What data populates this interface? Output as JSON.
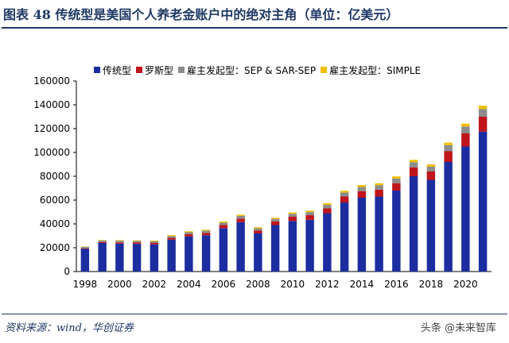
{
  "figure": {
    "title": "图表 48   传统型是美国个人养老金账户中的绝对主角（单位：亿美元）",
    "source": "资料来源：wind，华创证券",
    "watermark": "头条 @未来智库"
  },
  "chart_data": {
    "type": "bar",
    "stacked": true,
    "categories": [
      "1998",
      "1999",
      "2000",
      "2001",
      "2002",
      "2003",
      "2004",
      "2005",
      "2006",
      "2007",
      "2008",
      "2009",
      "2010",
      "2011",
      "2012",
      "2013",
      "2014",
      "2015",
      "2016",
      "2017",
      "2018",
      "2019",
      "2020",
      "2021"
    ],
    "x_tick_labels": [
      "1998",
      "2000",
      "2002",
      "2004",
      "2006",
      "2008",
      "2010",
      "2012",
      "2014",
      "2016",
      "2018",
      "2020"
    ],
    "series": [
      {
        "name": "传统型",
        "color": "#1c2da0",
        "values": [
          19000,
          24000,
          23500,
          23200,
          22800,
          26800,
          29500,
          30500,
          36500,
          41500,
          32000,
          39000,
          42500,
          43500,
          49000,
          58000,
          62000,
          63000,
          68000,
          80000,
          77000,
          92000,
          105000,
          117500
        ]
      },
      {
        "name": "罗斯型",
        "color": "#c0141c",
        "values": [
          500,
          800,
          1000,
          1100,
          1200,
          1500,
          1800,
          2000,
          2500,
          3000,
          2500,
          3000,
          3500,
          3800,
          4200,
          5000,
          5500,
          5800,
          6200,
          7500,
          7000,
          9000,
          11000,
          12500
        ]
      },
      {
        "name": "雇主发起型：SEP & SAR-SEP",
        "color": "#8c8c8c",
        "values": [
          1200,
          1300,
          1400,
          1400,
          1400,
          1500,
          1700,
          1800,
          2000,
          2200,
          1800,
          2200,
          2500,
          2600,
          2900,
          3300,
          3500,
          3600,
          3900,
          4300,
          4100,
          5000,
          5800,
          6500
        ]
      },
      {
        "name": "雇主发起型：SIMPLE",
        "color": "#f0c000",
        "values": [
          300,
          400,
          500,
          500,
          600,
          700,
          800,
          800,
          900,
          1000,
          900,
          1000,
          1100,
          1200,
          1300,
          1500,
          1600,
          1700,
          1800,
          2000,
          1900,
          2200,
          2400,
          2800
        ]
      }
    ],
    "ylim": [
      0,
      160000
    ],
    "y_ticks": [
      0,
      20000,
      40000,
      60000,
      80000,
      100000,
      120000,
      140000,
      160000
    ],
    "grid": false,
    "legend_position": "top"
  }
}
